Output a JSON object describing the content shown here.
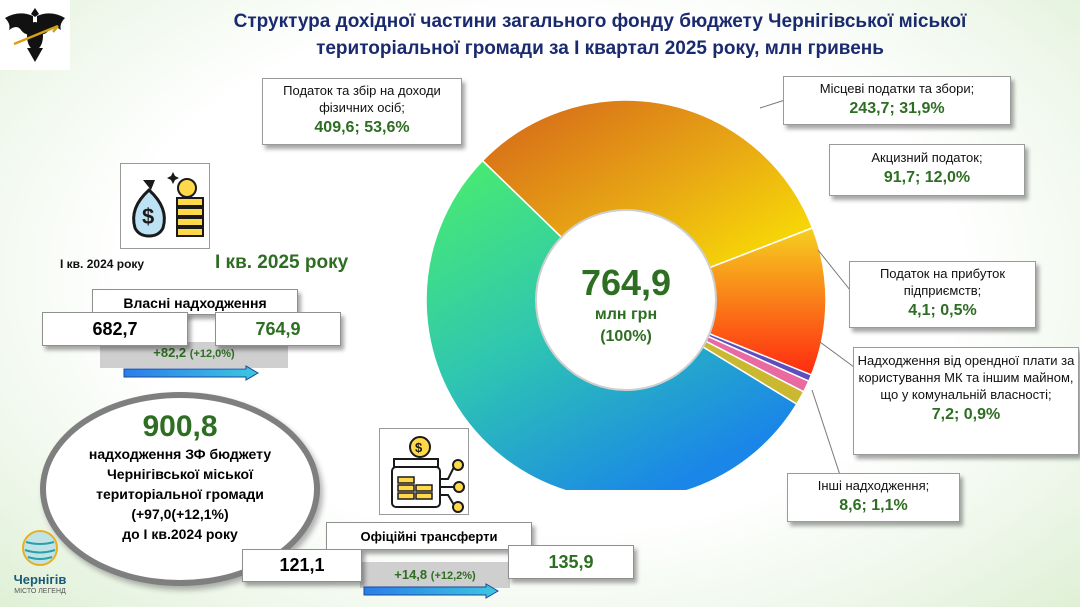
{
  "title": {
    "line1": "Структура дохідної частини загального фонду бюджету Чернігівської міської",
    "line2": "територіальної громади за І квартал 2025 року, млн гривень"
  },
  "chart_data": {
    "type": "pie",
    "center": {
      "value": "764,9",
      "unit": "млн грн",
      "percent": "(100%)"
    },
    "slices": [
      {
        "label": "Податок та збір на доходи фізичних осіб;",
        "value": 409.6,
        "value_text": "409,6; 53,6%",
        "percent": 53.6,
        "color": "#4fd87f"
      },
      {
        "label": "Місцеві податки та збори;",
        "value": 243.7,
        "value_text": "243,7;  31,9%",
        "percent": 31.9,
        "color": "#f0b010"
      },
      {
        "label": "Акцизний податок;",
        "value": 91.7,
        "value_text": "91,7; 12,0%",
        "percent": 12.0,
        "color": "#f26a14"
      },
      {
        "label": "Податок на прибуток підприємств;",
        "value": 4.1,
        "value_text": "4,1; 0,5%",
        "percent": 0.5,
        "color": "#5b4fc0"
      },
      {
        "label": "Надходження від орендної плати за користування МК та іншим майном, що у комунальній власності;",
        "value": 7.2,
        "value_text": "7,2; 0,9%",
        "percent": 0.9,
        "color": "#e86aa0"
      },
      {
        "label": "Інші надходження;",
        "value": 8.6,
        "value_text": "8,6; 1,1%",
        "percent": 1.1,
        "color": "#c9b830"
      }
    ]
  },
  "own_revenue": {
    "year_prev_label": "І кв. 2024 року",
    "year_curr_label": "І кв. 2025 року",
    "label": "Власні надходження",
    "prev_value": "682,7",
    "curr_value": "764,9",
    "diff_main": "+82,2",
    "diff_pct": "(+12,0%)"
  },
  "total": {
    "value": "900,8",
    "line1": "надходження ЗФ бюджету",
    "line2": "Чернігівської міської",
    "line3": "територіальної громади",
    "line4": "(+97,0(+12,1%)",
    "line5": "до І кв.2024 року"
  },
  "transfers": {
    "label": "Офіційні трансферти",
    "prev_value": "121,1",
    "curr_value": "135,9",
    "diff_main": "+14,8",
    "diff_pct": "(+12,2%)"
  },
  "logo": {
    "text": "Чернігів",
    "subtext": "МІСТО ЛЕГЕНД"
  }
}
